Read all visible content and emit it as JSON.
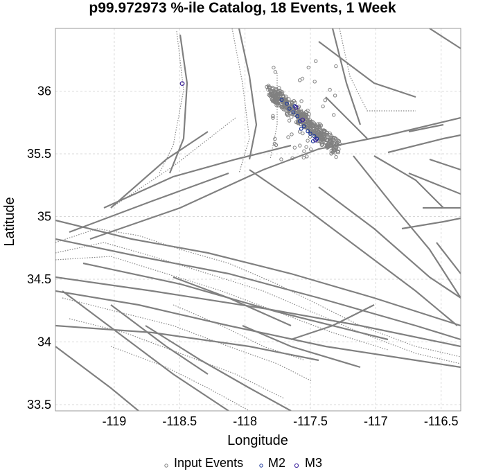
{
  "chart_data": {
    "type": "scatter",
    "title": "p99.972973 %-ile Catalog, 18 Events, 1 Week",
    "xlabel": "Longitude",
    "ylabel": "Latitude",
    "xlim": [
      -119.45,
      -116.35
    ],
    "ylim": [
      33.45,
      36.5
    ],
    "xticks": [
      -119,
      -118.5,
      -118,
      -117.5,
      -117,
      -116.5
    ],
    "yticks": [
      33.5,
      34,
      34.5,
      35,
      35.5,
      36
    ],
    "xtick_labels": [
      "-119",
      "-118.5",
      "-118",
      "-117.5",
      "-117",
      "-116.5"
    ],
    "ytick_labels": [
      "33.5",
      "34",
      "34.5",
      "35",
      "35.5",
      "36"
    ],
    "grid": true,
    "legend": {
      "position": "bottom",
      "entries": [
        {
          "label": "Input Events",
          "color": "#808080"
        },
        {
          "label": "M2",
          "color": "#1f3a9a"
        },
        {
          "label": "M3",
          "color": "#3a1f9a"
        }
      ]
    },
    "series": [
      {
        "name": "M2",
        "color": "#1f3a9a",
        "points": [
          [
            -117.72,
            35.93
          ],
          [
            -117.68,
            35.9
          ],
          [
            -117.66,
            35.86
          ],
          [
            -117.63,
            35.83
          ],
          [
            -117.6,
            35.8
          ],
          [
            -117.58,
            35.76
          ],
          [
            -117.55,
            35.72
          ],
          [
            -117.52,
            35.68
          ],
          [
            -117.5,
            35.66
          ],
          [
            -117.47,
            35.64
          ],
          [
            -117.45,
            35.62
          ],
          [
            -117.62,
            35.88
          ],
          [
            -117.57,
            35.7
          ],
          [
            -117.48,
            35.6
          ]
        ]
      },
      {
        "name": "M3",
        "color": "#3a1f9a",
        "points": [
          [
            -118.48,
            36.06
          ],
          [
            -117.61,
            35.87
          ],
          [
            -117.56,
            35.77
          ],
          [
            -117.46,
            35.61
          ]
        ]
      }
    ]
  }
}
